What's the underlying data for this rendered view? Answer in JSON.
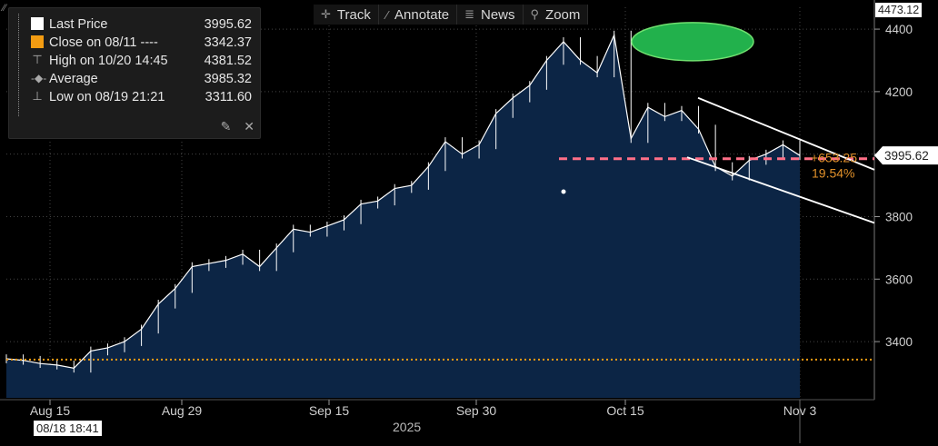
{
  "toolbar": {
    "track": "Track",
    "annotate": "Annotate",
    "news": "News",
    "zoom": "Zoom"
  },
  "legend": {
    "last_price": {
      "label": "Last Price",
      "value": "3995.62",
      "color": "#ffffff"
    },
    "close": {
      "label": "Close on 08/11 ----",
      "value": "3342.37",
      "color": "#f39c12"
    },
    "high": {
      "label": "High on 10/20 14:45",
      "value": "4381.52"
    },
    "average": {
      "label": "Average",
      "value": "3985.32"
    },
    "low": {
      "label": "Low on 08/19 21:21",
      "value": "3311.60"
    }
  },
  "axis_tags": {
    "high_tag": "4473.12",
    "last_tag": "3995.62",
    "cursor_date": "08/18 18:41",
    "year": "2025"
  },
  "annotations": {
    "change_abs": "+653.25",
    "change_pct": "19.54%"
  },
  "colors": {
    "background": "#000000",
    "area_fill": "#0c2545",
    "price_line": "#ffffff",
    "close_line": "#f39c12",
    "average_line": "#ff6f87",
    "ellipse": "#22b14c",
    "channel": "#ffffff"
  },
  "chart_data": {
    "type": "area",
    "title": "",
    "xlabel": "2025",
    "ylabel": "",
    "x_ticks": [
      "Aug 15",
      "Aug 29",
      "Sep 15",
      "Sep 30",
      "Oct 15",
      "Nov 3"
    ],
    "y_ticks": [
      3400,
      3600,
      3800,
      4000,
      4200,
      4400
    ],
    "ylim": [
      3220,
      4470
    ],
    "grid": true,
    "grid_style": "dotted",
    "reference_lines": [
      {
        "name": "Close on 08/11",
        "value": 3342.37
      },
      {
        "name": "Average",
        "value": 3985.32
      }
    ],
    "series": [
      {
        "name": "Last Price",
        "x": [
          "Aug 11",
          "Aug 13",
          "Aug 15",
          "Aug 18",
          "Aug 19",
          "Aug 21",
          "Aug 22",
          "Aug 25",
          "Aug 27",
          "Aug 29",
          "Sep 1",
          "Sep 3",
          "Sep 5",
          "Sep 8",
          "Sep 10",
          "Sep 12",
          "Sep 15",
          "Sep 17",
          "Sep 19",
          "Sep 22",
          "Sep 23",
          "Sep 25",
          "Sep 26",
          "Sep 29",
          "Sep 30",
          "Oct 1",
          "Oct 3",
          "Oct 6",
          "Oct 8",
          "Oct 9",
          "Oct 10",
          "Oct 13",
          "Oct 14",
          "Oct 15",
          "Oct 16",
          "Oct 17",
          "Oct 20",
          "Oct 21",
          "Oct 22",
          "Oct 23",
          "Oct 24",
          "Oct 27",
          "Oct 28",
          "Oct 29",
          "Oct 30",
          "Oct 31",
          "Nov 3",
          "Nov 4"
        ],
        "values": [
          3345,
          3340,
          3330,
          3325,
          3315,
          3370,
          3380,
          3400,
          3440,
          3520,
          3570,
          3640,
          3650,
          3660,
          3680,
          3640,
          3700,
          3760,
          3750,
          3770,
          3790,
          3840,
          3850,
          3890,
          3900,
          3960,
          4040,
          4000,
          4030,
          4130,
          4180,
          4220,
          4300,
          4360,
          4300,
          4260,
          4381,
          4050,
          4150,
          4120,
          4140,
          4080,
          3960,
          3930,
          3980,
          4000,
          4030,
          3995.62
        ]
      }
    ],
    "annotations": [
      {
        "type": "text",
        "text": "+653.25"
      },
      {
        "type": "text",
        "text": "19.54%"
      },
      {
        "type": "ellipse",
        "around": "Oct 20 peak"
      },
      {
        "type": "channel",
        "from": "Oct 22",
        "to": "Nov 8"
      }
    ]
  }
}
